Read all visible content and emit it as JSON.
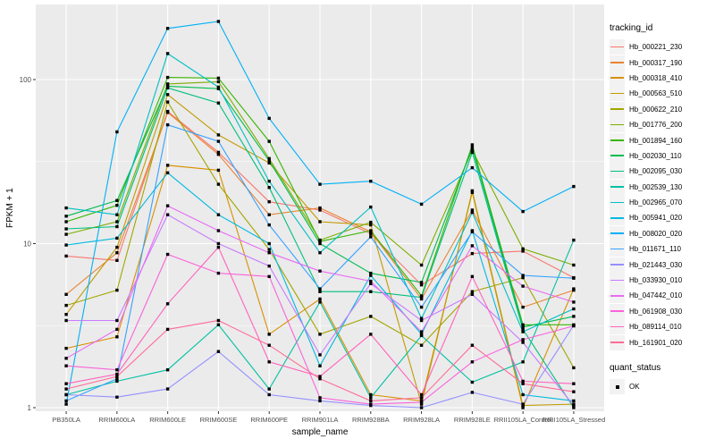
{
  "figure": {
    "background": "#FFFFFF"
  },
  "axes": {
    "x_title": "sample_name",
    "y_title": "FPKM + 1"
  },
  "legend": {
    "tracking_title": "tracking_id",
    "quant_title": "quant_status",
    "quant_items": [
      {
        "label": "OK",
        "marker": "black-square"
      }
    ]
  },
  "chart_data": {
    "type": "line",
    "log_y": true,
    "title": "",
    "xlabel": "sample_name",
    "ylabel": "FPKM + 1",
    "legend_position": "right",
    "grid": true,
    "ylim": [
      1,
      280
    ],
    "y_tick_values": [
      1,
      10,
      100
    ],
    "y_tick_labels": [
      "1",
      "10",
      "100"
    ],
    "y_minor_values": [
      3.162,
      31.62
    ],
    "x_categories": [
      "PB350LA",
      "RRIM600LA",
      "RRIM600LE",
      "RRIM600SE",
      "RRIM600PE",
      "RRIM901LA",
      "RRIM928BA",
      "RRIM928LA",
      "RRIM928LE",
      "RRII105LA_Control",
      "RRII105LA_Stressed"
    ],
    "colors": {
      "panel_bg": "#EBEBEB",
      "grid": "#FFFFFF",
      "point": "#000000",
      "axis_text": "#4D4D4D"
    },
    "point": {
      "shape": "square",
      "color": "#000000",
      "size": 3.4
    },
    "series": [
      {
        "name": "Hb_000221_230",
        "color": "#F8766D",
        "values": [
          8.4,
          7.9,
          64,
          36,
          18,
          16,
          11.5,
          5.6,
          8.7,
          9.0,
          6.2
        ]
      },
      {
        "name": "Hb_000317_190",
        "color": "#EA8331",
        "values": [
          4.9,
          8.8,
          63,
          35,
          15,
          16.5,
          11.8,
          4.6,
          16,
          4.1,
          5.2
        ]
      },
      {
        "name": "Hb_000318_410",
        "color": "#D89000",
        "values": [
          2.3,
          2.7,
          30,
          28,
          2.8,
          4.6,
          1.2,
          1.1,
          20.5,
          1.0,
          5.3
        ]
      },
      {
        "name": "Hb_000563_510",
        "color": "#C09B00",
        "values": [
          3.7,
          9.5,
          81,
          46,
          31,
          13.6,
          13,
          1.05,
          21,
          1.03,
          1.05
        ]
      },
      {
        "name": "Hb_000622_210",
        "color": "#A3A500",
        "values": [
          4.2,
          5.2,
          73,
          23,
          9.2,
          2.8,
          3.6,
          2.4,
          5.1,
          6.2,
          1.75
        ]
      },
      {
        "name": "Hb_001776_200",
        "color": "#7CAE00",
        "values": [
          11.4,
          13.6,
          94,
          97,
          33,
          10.5,
          13.5,
          7.4,
          37,
          9.3,
          7.4
        ]
      },
      {
        "name": "Hb_001894_160",
        "color": "#39B600",
        "values": [
          13.6,
          17.1,
          103,
          102,
          42,
          10.3,
          12,
          4.8,
          40,
          3.2,
          3.2
        ]
      },
      {
        "name": "Hb_002030_110",
        "color": "#00BB4E",
        "values": [
          14.7,
          18.3,
          91,
          88,
          32,
          10,
          6.6,
          5.8,
          38.5,
          3.1,
          3.6
        ]
      },
      {
        "name": "Hb_002095_030",
        "color": "#00BF7D",
        "values": [
          12.3,
          12.7,
          89,
          72,
          22,
          5.1,
          5.1,
          4.7,
          36,
          3.0,
          1.0
        ]
      },
      {
        "name": "Hb_002539_130",
        "color": "#00C1A3",
        "values": [
          1.2,
          1.45,
          1.7,
          3.2,
          1.3,
          4.4,
          1.15,
          2.75,
          1.43,
          1.9,
          10.5
        ]
      },
      {
        "name": "Hb_002965_070",
        "color": "#00BFC4",
        "values": [
          16.5,
          15,
          144,
          90,
          24,
          8.8,
          16.7,
          3.5,
          15.5,
          2.9,
          4.0
        ]
      },
      {
        "name": "Hb_005941_020",
        "color": "#00BAE0",
        "values": [
          9.8,
          10.8,
          27,
          15,
          10,
          1.8,
          6.4,
          2.8,
          12,
          1.2,
          1.1
        ]
      },
      {
        "name": "Hb_008020_020",
        "color": "#00B0F6",
        "values": [
          1.05,
          48,
          205,
          226,
          58,
          23,
          24,
          17.4,
          29,
          15.7,
          22.3
        ]
      },
      {
        "name": "Hb_011671_110",
        "color": "#35A2FF",
        "values": [
          1.1,
          1.5,
          53,
          42,
          13,
          5.3,
          11,
          4.1,
          11.8,
          6.4,
          6.15
        ]
      },
      {
        "name": "Hb_021443_030",
        "color": "#9590FF",
        "values": [
          1.2,
          1.16,
          1.3,
          2.2,
          1.2,
          1.1,
          1.03,
          1.0,
          1.24,
          1.05,
          3.18
        ]
      },
      {
        "name": "Hb_033930_010",
        "color": "#C77CFF",
        "values": [
          3.4,
          3.4,
          15,
          10,
          7.3,
          2.1,
          5.7,
          3.4,
          4.9,
          2.5,
          1.03
        ]
      },
      {
        "name": "Hb_047442_010",
        "color": "#E76BF3",
        "values": [
          2.0,
          3.0,
          17,
          12,
          8.8,
          6.8,
          5.9,
          2.9,
          9.7,
          5.5,
          4.4
        ]
      },
      {
        "name": "Hb_061908_030",
        "color": "#FA62DB",
        "values": [
          1.8,
          1.7,
          8.6,
          6.6,
          6.3,
          1.15,
          1.05,
          1.08,
          1.9,
          2.6,
          3.15
        ]
      },
      {
        "name": "Hb_089114_010",
        "color": "#FF62BC",
        "values": [
          1.4,
          1.6,
          4.3,
          9.5,
          1.9,
          1.55,
          2.8,
          1.2,
          6.3,
          1.45,
          1.4
        ]
      },
      {
        "name": "Hb_161901_020",
        "color": "#FF6A98",
        "values": [
          1.3,
          1.55,
          3.0,
          3.4,
          2.4,
          1.5,
          1.1,
          1.15,
          2.4,
          1.4,
          1.25
        ]
      }
    ]
  }
}
